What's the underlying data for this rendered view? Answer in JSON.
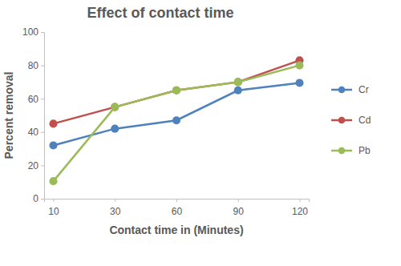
{
  "chart_data": {
    "type": "line",
    "title": "Effect of contact time",
    "x_label": "Contact time in (Minutes)",
    "y_label": "Percent removal",
    "categories": [
      "10",
      "30",
      "60",
      "90",
      "120"
    ],
    "series": [
      {
        "name": "Cr",
        "color": "#4f81bd",
        "values": [
          32,
          42,
          47,
          65,
          69.5
        ]
      },
      {
        "name": "Cd",
        "color": "#c0504d",
        "values": [
          45,
          55,
          65,
          70,
          83
        ]
      },
      {
        "name": "Pb",
        "color": "#9bbb59",
        "values": [
          10.5,
          55,
          65,
          70,
          80
        ]
      }
    ],
    "ylim": [
      0,
      100
    ],
    "yticks": [
      0,
      20,
      40,
      60,
      80,
      100
    ],
    "grid": false,
    "legend": "right",
    "marker": "circle"
  }
}
